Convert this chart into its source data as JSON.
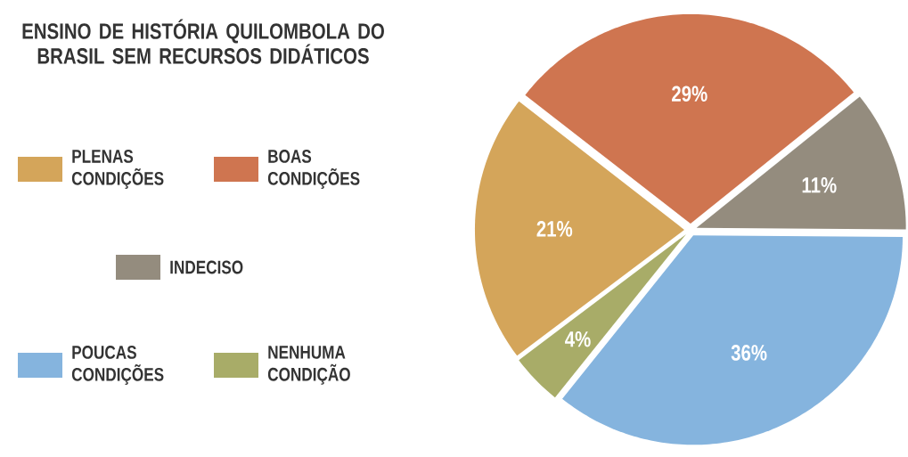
{
  "chart_data": {
    "type": "pie",
    "title": "ENSINO DE HISTÓRIA QUILOMBOLA DO BRASIL SEM RECURSOS DIDÁTICOS",
    "categories": [
      "PLENAS CONDIÇÕES",
      "BOAS CONDIÇÕES",
      "INDECISO",
      "POUCAS CONDIÇÕES",
      "NENHUMA CONDIÇÃO"
    ],
    "values": [
      21,
      29,
      11,
      36,
      4
    ],
    "colors": [
      "#d4a55a",
      "#cf7550",
      "#948c7e",
      "#85b4de",
      "#a8ac68"
    ],
    "value_labels": [
      "21%",
      "29%",
      "11%",
      "36%",
      "4%"
    ],
    "legend": "left"
  }
}
